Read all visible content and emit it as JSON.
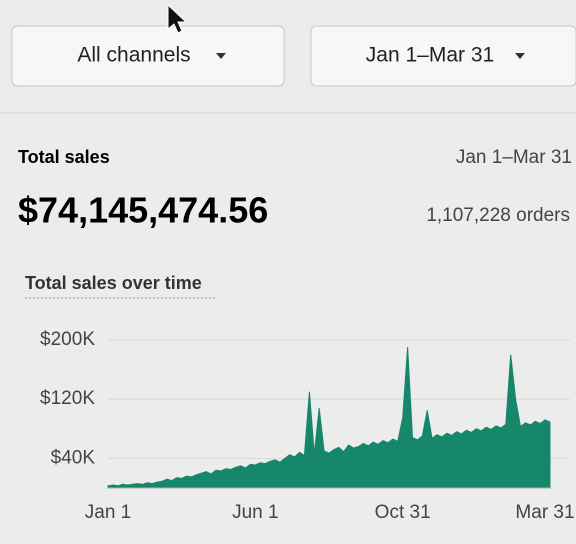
{
  "filters": {
    "channel": "All channels",
    "date_range": "Jan 1–Mar 31"
  },
  "summary": {
    "label": "Total sales",
    "period": "Jan 1–Mar 31",
    "total": "$74,145,474.56",
    "orders": "1,107,228 orders"
  },
  "chart_data": {
    "type": "area",
    "title": "Total sales over time",
    "color": "#17876b",
    "grid": true,
    "categories": [
      "Jan 1",
      null,
      null,
      null,
      null,
      null,
      null,
      null,
      null,
      null,
      null,
      null,
      null,
      null,
      null,
      null,
      null,
      null,
      null,
      null,
      null,
      null,
      null,
      null,
      null,
      null,
      null,
      null,
      null,
      null,
      "Jun 1",
      null,
      null,
      null,
      null,
      null,
      null,
      null,
      null,
      null,
      null,
      null,
      null,
      null,
      null,
      null,
      null,
      null,
      null,
      null,
      null,
      null,
      null,
      null,
      null,
      null,
      null,
      null,
      null,
      null,
      "Oct 31",
      null,
      null,
      null,
      null,
      null,
      null,
      null,
      null,
      null,
      null,
      null,
      null,
      null,
      null,
      null,
      null,
      null,
      null,
      null,
      null,
      null,
      null,
      null,
      null,
      null,
      null,
      null,
      null,
      null,
      "Mar 31"
    ],
    "values": [
      3000,
      4000,
      3000,
      5000,
      4000,
      5000,
      6000,
      5000,
      7000,
      6000,
      8000,
      9000,
      12000,
      10000,
      14000,
      13000,
      16000,
      15000,
      18000,
      20000,
      22000,
      19000,
      24000,
      23000,
      26000,
      25000,
      28000,
      30000,
      27000,
      32000,
      31000,
      34000,
      33000,
      36000,
      38000,
      35000,
      40000,
      45000,
      42000,
      48000,
      44000,
      130000,
      46000,
      108000,
      50000,
      47000,
      52000,
      55000,
      49000,
      58000,
      54000,
      56000,
      60000,
      57000,
      62000,
      59000,
      64000,
      61000,
      66000,
      63000,
      95000,
      190000,
      68000,
      65000,
      70000,
      105000,
      67000,
      72000,
      69000,
      74000,
      71000,
      76000,
      73000,
      78000,
      75000,
      80000,
      77000,
      82000,
      79000,
      84000,
      81000,
      86000,
      180000,
      120000,
      83000,
      88000,
      85000,
      90000,
      87000,
      92000,
      89000
    ],
    "ylim": [
      0,
      220000
    ],
    "yticks": [
      {
        "value": 200000,
        "label": "$200K"
      },
      {
        "value": 120000,
        "label": "$120K"
      },
      {
        "value": 40000,
        "label": "$40K"
      }
    ]
  }
}
